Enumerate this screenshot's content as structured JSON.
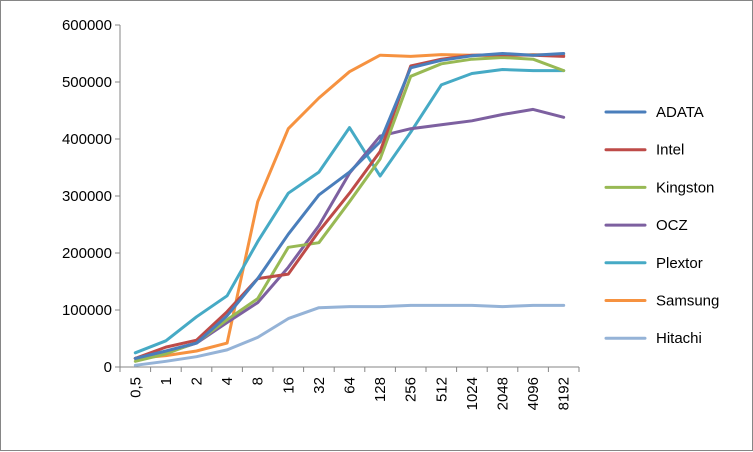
{
  "chart_data": {
    "type": "line",
    "title": "",
    "xlabel": "",
    "ylabel": "",
    "categories": [
      "0,5",
      "1",
      "2",
      "4",
      "8",
      "16",
      "32",
      "64",
      "128",
      "256",
      "512",
      "1024",
      "2048",
      "4096",
      "8192"
    ],
    "ylim": [
      0,
      600000
    ],
    "yticks": [
      0,
      100000,
      200000,
      300000,
      400000,
      500000,
      600000
    ],
    "ytick_labels": [
      "0",
      "100000",
      "200000",
      "300000",
      "400000",
      "500000",
      "600000"
    ],
    "grid": false,
    "legend_position": "right",
    "series": [
      {
        "name": "ADATA",
        "color": "#4A7EBB",
        "values": [
          15000,
          28000,
          42000,
          90000,
          155000,
          233000,
          302000,
          342000,
          395000,
          525000,
          538000,
          546000,
          550000,
          547000,
          550000
        ]
      },
      {
        "name": "Intel",
        "color": "#BE4B48",
        "values": [
          15000,
          35000,
          47000,
          97000,
          155000,
          163000,
          238000,
          305000,
          378000,
          528000,
          540000,
          547000,
          548000,
          547000,
          545000
        ]
      },
      {
        "name": "Kingston",
        "color": "#98B954",
        "values": [
          10000,
          23000,
          43000,
          83000,
          120000,
          210000,
          218000,
          290000,
          365000,
          510000,
          532000,
          540000,
          543000,
          540000,
          520000
        ]
      },
      {
        "name": "OCZ",
        "color": "#7D60A0",
        "values": [
          15000,
          25000,
          42000,
          78000,
          113000,
          175000,
          248000,
          340000,
          405000,
          418000,
          425000,
          432000,
          443000,
          452000,
          438000
        ]
      },
      {
        "name": "Plextor",
        "color": "#46AAC5",
        "values": [
          25000,
          46000,
          88000,
          125000,
          220000,
          305000,
          342000,
          420000,
          335000,
          412000,
          495000,
          515000,
          522000,
          520000,
          520000
        ]
      },
      {
        "name": "Samsung",
        "color": "#F69240",
        "values": [
          15000,
          20000,
          28000,
          42000,
          290000,
          418000,
          472000,
          518000,
          547000,
          545000,
          548000,
          547000,
          546000,
          548000,
          547000
        ]
      },
      {
        "name": "Hitachi",
        "color": "#95B3D7",
        "values": [
          3000,
          10000,
          18000,
          30000,
          52000,
          85000,
          104000,
          106000,
          106000,
          108000,
          108000,
          108000,
          106000,
          108000,
          108000
        ]
      }
    ]
  }
}
